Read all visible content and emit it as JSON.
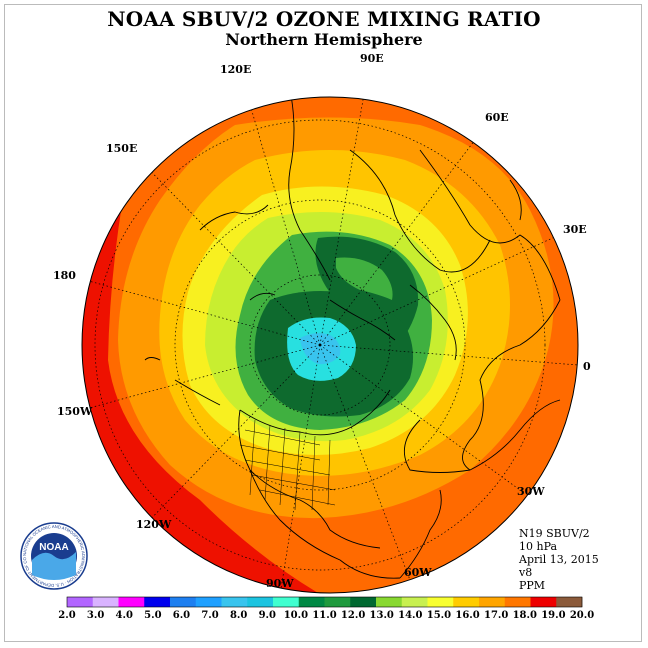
{
  "title": "NOAA SBUV/2 OZONE MIXING RATIO",
  "subtitle": "Northern Hemisphere",
  "info": {
    "satellite": "N19 SBUV/2",
    "level": "10 hPa",
    "date": "April 13, 2015",
    "version": "v8",
    "units": "PPM"
  },
  "longitude_labels": [
    "90E",
    "60E",
    "120E",
    "150E",
    "30E",
    "180",
    "0",
    "150W",
    "30W",
    "120W",
    "60W",
    "90W"
  ],
  "logo": {
    "text": "NOAA",
    "ring_text": "NATIONAL OCEANIC AND ATMOSPHERIC ADMINISTRATION · U.S. DEPARTMENT OF COMMERCE"
  },
  "colorbar": {
    "ticks": [
      "2.0",
      "3.0",
      "4.0",
      "5.0",
      "6.0",
      "7.0",
      "8.0",
      "9.0",
      "10.0",
      "11.0",
      "12.0",
      "13.0",
      "14.0",
      "15.0",
      "16.0",
      "17.0",
      "18.0",
      "19.0",
      "20.0"
    ],
    "colors": [
      "#b266ff",
      "#d9b3ff",
      "#ff00ff",
      "#0000ee",
      "#1e7ff0",
      "#1fa0ff",
      "#39c4ee",
      "#1cc4e0",
      "#40ffd0",
      "#008844",
      "#1f9a3e",
      "#006830",
      "#88d830",
      "#c8f050",
      "#f8ff30",
      "#ffcc00",
      "#ffa500",
      "#ff7700",
      "#ee0000",
      "#8b5a3a"
    ]
  },
  "colors": {
    "ocean_outer": "#ff6a00",
    "red_band": "#ee1100",
    "orange": "#ff9a00",
    "yellow_orange": "#ffc400",
    "yellow": "#f8f020",
    "light_green": "#c8ee30",
    "green": "#40b040",
    "dark_green": "#0e6a2e",
    "cyan": "#28e0e0"
  }
}
